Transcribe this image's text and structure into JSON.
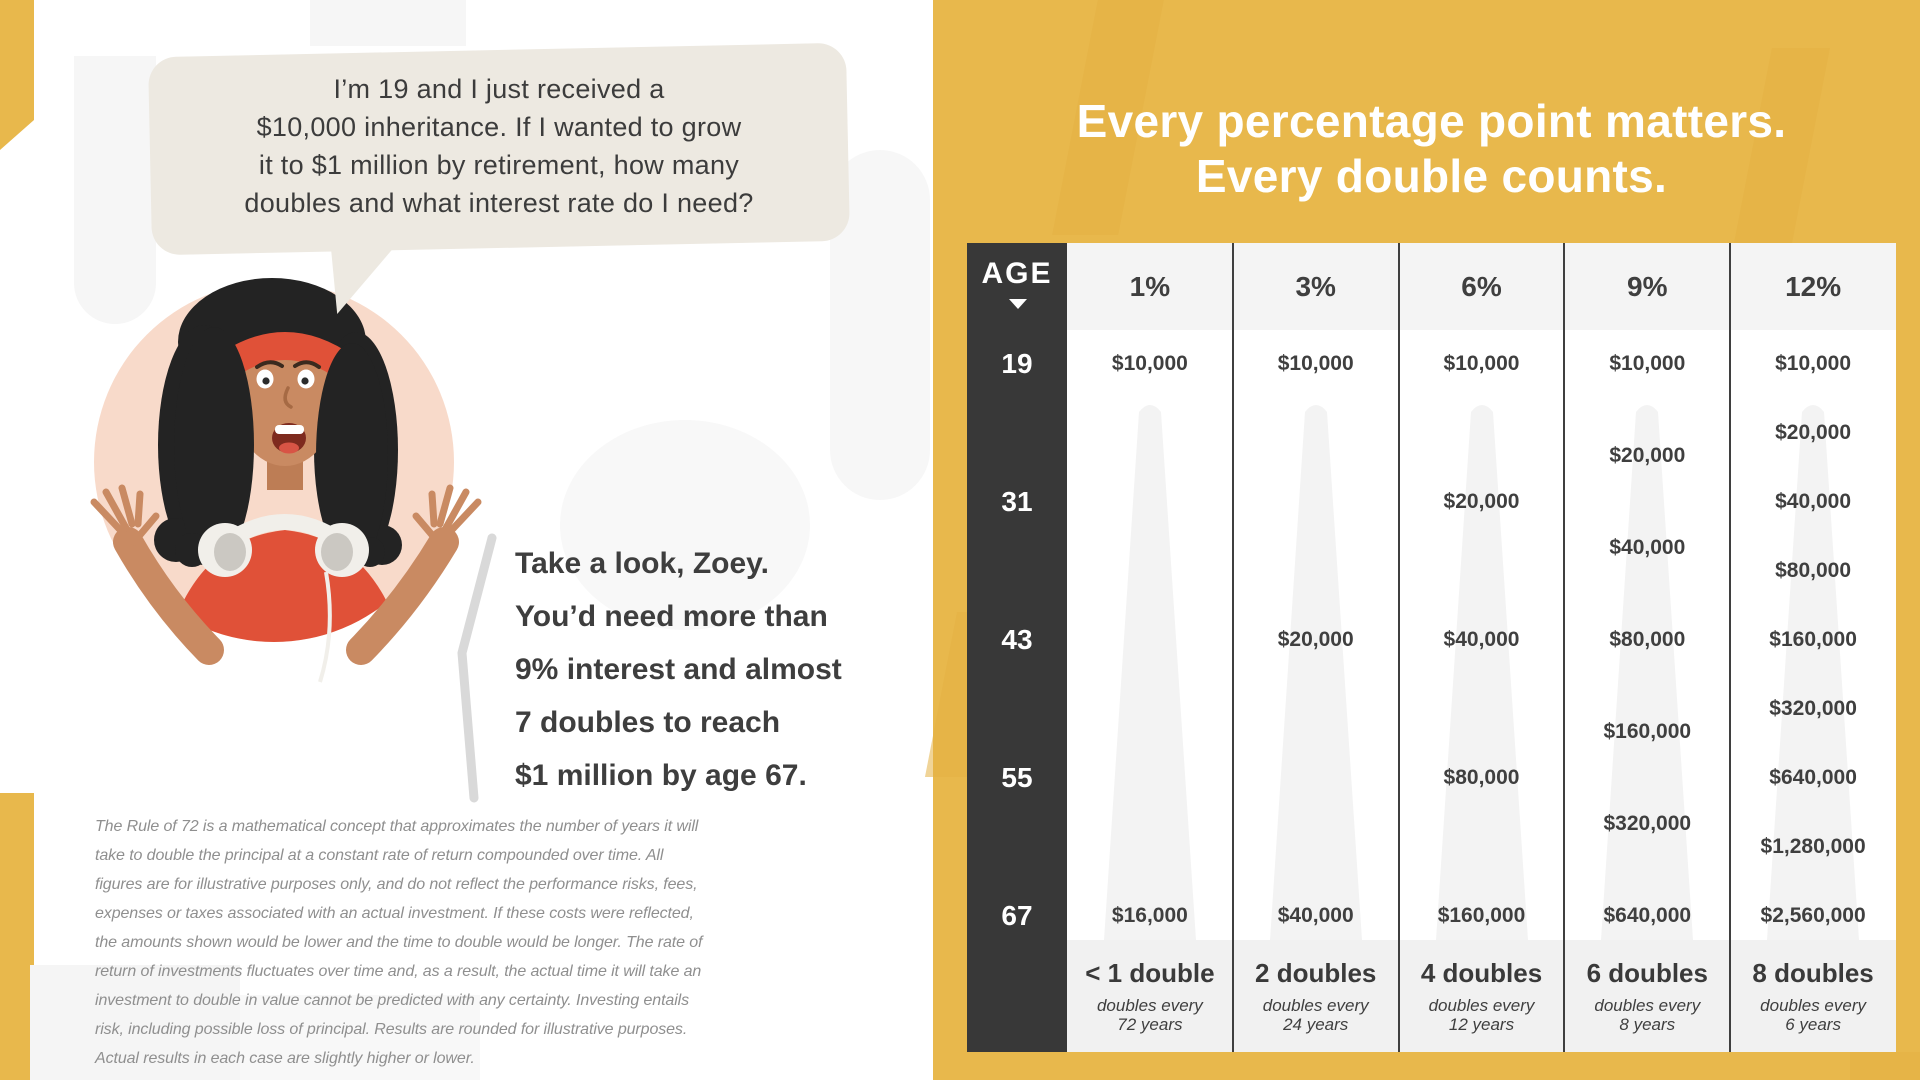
{
  "left_panel": {
    "speech_bubble": {
      "lines": [
        "I’m 19 and I just received a",
        "$10,000 inheritance. If I wanted to grow",
        "it to $1 million by retirement, how many",
        "doubles and what interest rate do I need?"
      ]
    },
    "advice": {
      "lines": [
        "Take a look, Zoey.",
        "You’d need more than",
        "9% interest and almost",
        "7 doubles to reach",
        "$1 million by age 67."
      ]
    },
    "disclaimer_lines": [
      "The Rule of 72 is a mathematical concept that approximates the number of years it will",
      "take to double the principal at a constant rate of return compounded over time. All",
      "figures are for illustrative purposes only, and do not reflect the performance risks, fees,",
      "expenses or taxes associated with an actual investment. If these costs were reflected,",
      "the amounts shown would be lower and the time to double would be longer. The rate of",
      "return of investments fluctuates over time and, as a result, the actual time it will take an",
      "investment to double in value cannot be predicted with any certainty. Investing entails",
      "risk, including possible loss of principal. Results are rounded for illustrative purposes.",
      "Actual results in each case are slightly higher or lower."
    ]
  },
  "right_panel": {
    "title_lines": [
      "Every percentage point matters.",
      "Every double counts."
    ]
  },
  "chart_data": {
    "type": "table",
    "title": "Every percentage point matters. Every double counts.",
    "row_header": "AGE",
    "ages": [
      19,
      31,
      43,
      55,
      67
    ],
    "age_range": [
      19,
      67
    ],
    "series": [
      {
        "rate": "1%",
        "doubles_label": "< 1 double",
        "frequency_lines": [
          "doubles every",
          "72 years"
        ],
        "points": [
          {
            "age": 19,
            "value": 10000,
            "label": "$10,000"
          },
          {
            "age": 67,
            "value": 16000,
            "label": "$16,000"
          }
        ]
      },
      {
        "rate": "3%",
        "doubles_label": "2 doubles",
        "frequency_lines": [
          "doubles every",
          "24 years"
        ],
        "points": [
          {
            "age": 19,
            "value": 10000,
            "label": "$10,000"
          },
          {
            "age": 43,
            "value": 20000,
            "label": "$20,000"
          },
          {
            "age": 67,
            "value": 40000,
            "label": "$40,000"
          }
        ]
      },
      {
        "rate": "6%",
        "doubles_label": "4 doubles",
        "frequency_lines": [
          "doubles every",
          "12 years"
        ],
        "points": [
          {
            "age": 19,
            "value": 10000,
            "label": "$10,000"
          },
          {
            "age": 31,
            "value": 20000,
            "label": "$20,000"
          },
          {
            "age": 43,
            "value": 40000,
            "label": "$40,000"
          },
          {
            "age": 55,
            "value": 80000,
            "label": "$80,000"
          },
          {
            "age": 67,
            "value": 160000,
            "label": "$160,000"
          }
        ]
      },
      {
        "rate": "9%",
        "doubles_label": "6 doubles",
        "frequency_lines": [
          "doubles every",
          "8 years"
        ],
        "points": [
          {
            "age": 19,
            "value": 10000,
            "label": "$10,000"
          },
          {
            "age": 27,
            "value": 20000,
            "label": "$20,000"
          },
          {
            "age": 35,
            "value": 40000,
            "label": "$40,000"
          },
          {
            "age": 43,
            "value": 80000,
            "label": "$80,000"
          },
          {
            "age": 51,
            "value": 160000,
            "label": "$160,000"
          },
          {
            "age": 59,
            "value": 320000,
            "label": "$320,000"
          },
          {
            "age": 67,
            "value": 640000,
            "label": "$640,000"
          }
        ]
      },
      {
        "rate": "12%",
        "doubles_label": "8 doubles",
        "frequency_lines": [
          "doubles every",
          "6 years"
        ],
        "points": [
          {
            "age": 19,
            "value": 10000,
            "label": "$10,000"
          },
          {
            "age": 25,
            "value": 20000,
            "label": "$20,000"
          },
          {
            "age": 31,
            "value": 40000,
            "label": "$40,000"
          },
          {
            "age": 37,
            "value": 80000,
            "label": "$80,000"
          },
          {
            "age": 43,
            "value": 160000,
            "label": "$160,000"
          },
          {
            "age": 49,
            "value": 320000,
            "label": "$320,000"
          },
          {
            "age": 55,
            "value": 640000,
            "label": "$640,000"
          },
          {
            "age": 61,
            "value": 1280000,
            "label": "$1,280,000"
          },
          {
            "age": 67,
            "value": 2560000,
            "label": "$2,560,000"
          }
        ]
      }
    ],
    "layout_hints": {
      "grid": "off",
      "value_position_encodes_age": true
    }
  },
  "icons": {
    "age_direction_icon": "triangle-down",
    "growth_cone": "tapered-growth-shape",
    "quote_chevron": "left-angle-quote-line"
  },
  "colors": {
    "panel_yellow": "#E8B84C",
    "yellow_accent_dark": "#E3B043",
    "charcoal": "#383838",
    "table_header_bg": "#F4F4F4",
    "table_footer_bg": "#F1F1F1",
    "cone_gray": "#F3F3F3",
    "text_dark": "#3E3E3E",
    "disclaimer_gray": "#8F8F8F",
    "bubble_beige": "#EDE9E1",
    "skin_tan": "#C98A62",
    "circle_peach": "#F8DACA",
    "shirt_red": "#E05138",
    "hair_black": "#232323",
    "quote_mark_gray": "#D9D9D9",
    "white": "#FFFFFF"
  }
}
